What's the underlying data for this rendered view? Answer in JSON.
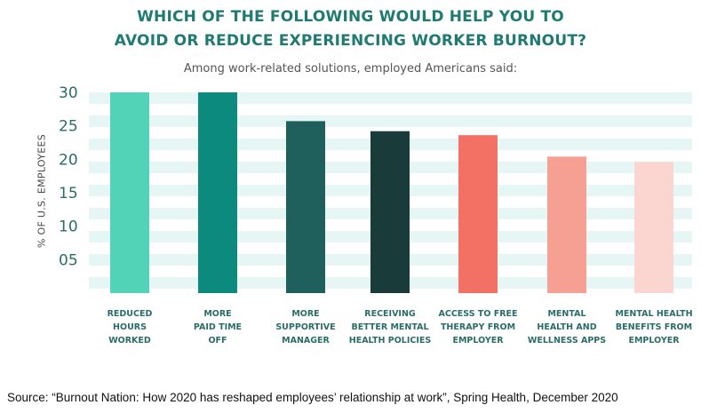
{
  "chart_data": {
    "type": "bar",
    "title_lines": [
      "WHICH OF THE FOLLOWING WOULD HELP YOU TO",
      "AVOID OR REDUCE EXPERIENCING WORKER BURNOUT?"
    ],
    "subtitle": "Among work-related solutions, employed Americans said:",
    "ylabel": "% OF U.S. EMPLOYEES",
    "ylim": [
      0,
      30
    ],
    "y_ticks": [
      {
        "value": 30,
        "label": "30"
      },
      {
        "value": 25,
        "label": "25"
      },
      {
        "value": 20,
        "label": "20"
      },
      {
        "value": 15,
        "label": "15"
      },
      {
        "value": 10,
        "label": "10"
      },
      {
        "value": 5,
        "label": "05"
      }
    ],
    "categories": [
      [
        "REDUCED",
        "HOURS",
        "WORKED"
      ],
      [
        "MORE",
        "PAID TIME",
        "OFF"
      ],
      [
        "MORE",
        "SUPPORTIVE",
        "MANAGER"
      ],
      [
        "RECEIVING",
        "BETTER MENTAL",
        "HEALTH POLICIES"
      ],
      [
        "ACCESS TO FREE",
        "THERAPY FROM",
        "EMPLOYER"
      ],
      [
        "MENTAL",
        "HEALTH AND",
        "WELLNESS APPS"
      ],
      [
        "MENTAL HEALTH",
        "BENEFITS FROM",
        "EMPLOYER"
      ]
    ],
    "values": [
      30,
      30,
      25.7,
      24.2,
      23.6,
      20.4,
      19.6
    ],
    "colors": [
      "#52d3b8",
      "#0c8a7e",
      "#1f5f5c",
      "#193c3b",
      "#f27064",
      "#f5a093",
      "#fbd5cf"
    ],
    "band_color": "#e6f6f4",
    "grid": true,
    "legend": "none"
  },
  "source": "Source: “Burnout Nation: How 2020 has reshaped employees’ relationship at work”, Spring Health, December 2020"
}
